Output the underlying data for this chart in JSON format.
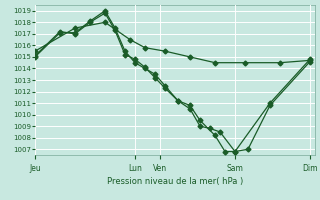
{
  "xlabel": "Pression niveau de la mer( hPa )",
  "bg_color": "#c8e8e0",
  "grid_color": "#b0d8d0",
  "line_color": "#1a5c28",
  "marker_color": "#1a5c28",
  "ylim": [
    1006.5,
    1019.5
  ],
  "yticks": [
    1007,
    1008,
    1009,
    1010,
    1011,
    1012,
    1013,
    1014,
    1015,
    1016,
    1017,
    1018,
    1019
  ],
  "day_labels": [
    "Jeu",
    "Lun",
    "Ven",
    "Sam",
    "Dim"
  ],
  "day_positions_x": [
    35,
    135,
    160,
    235,
    310
  ],
  "series1_x": [
    35,
    60,
    75,
    90,
    105,
    115,
    125,
    135,
    145,
    155,
    165,
    178,
    190,
    200,
    210,
    220,
    235,
    270,
    310
  ],
  "series1_y": [
    1015.0,
    1017.1,
    1017.1,
    1018.1,
    1019.0,
    1017.5,
    1015.5,
    1014.5,
    1014.0,
    1013.5,
    1012.5,
    1011.2,
    1010.5,
    1009.0,
    1008.8,
    1008.5,
    1006.8,
    1011.0,
    1014.8
  ],
  "series2_x": [
    35,
    60,
    75,
    90,
    105,
    115,
    125,
    135,
    145,
    155,
    165,
    178,
    190,
    200,
    215,
    225,
    235,
    248,
    270,
    310
  ],
  "series2_y": [
    1015.1,
    1017.2,
    1017.0,
    1018.0,
    1018.8,
    1017.3,
    1015.2,
    1014.8,
    1014.1,
    1013.2,
    1012.3,
    1011.2,
    1010.8,
    1009.5,
    1008.2,
    1006.8,
    1006.8,
    1007.0,
    1010.8,
    1014.6
  ],
  "series3_x": [
    35,
    75,
    105,
    130,
    145,
    165,
    190,
    215,
    245,
    280,
    310
  ],
  "series3_y": [
    1015.5,
    1017.5,
    1018.0,
    1016.5,
    1015.8,
    1015.5,
    1015.0,
    1014.5,
    1014.5,
    1014.5,
    1014.7
  ]
}
